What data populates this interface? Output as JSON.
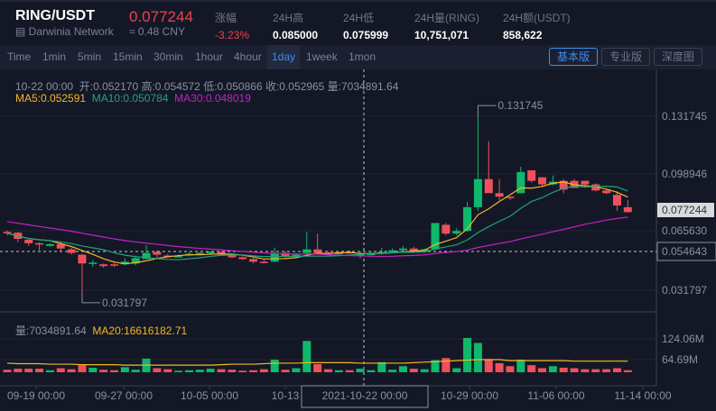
{
  "header": {
    "pair": "RING/USDT",
    "network": "Darwinia Network",
    "last_price": "0.077244",
    "cny_price": "≈ 0.48 CNY",
    "stats": [
      {
        "label": "涨幅",
        "value": "-3.23%",
        "color": "red"
      },
      {
        "label": "24H高",
        "value": "0.085000"
      },
      {
        "label": "24H低",
        "value": "0.075999"
      },
      {
        "label": "24H量(RING)",
        "value": "10,751,071"
      },
      {
        "label": "24H额(USDT)",
        "value": "858,622"
      }
    ]
  },
  "toolbar": {
    "intervals": [
      "Time",
      "1min",
      "5min",
      "15min",
      "30min",
      "1hour",
      "4hour",
      "1day",
      "1week",
      "1mon"
    ],
    "active_interval": "1day",
    "views": [
      "基本版",
      "专业版",
      "深度图"
    ],
    "active_view": "基本版"
  },
  "ohlc_info": {
    "date": "10-22 00:00",
    "open": "开:0.052170",
    "high": "高:0.054572",
    "low": "低:0.050866",
    "close": "收:0.052965",
    "volume": "量:7034891.64"
  },
  "ma_info": {
    "ma5": "MA5:0.052591",
    "ma10": "MA10:0.050784",
    "ma30": "MA30:0.048019"
  },
  "volume_info": {
    "volume": "量:7034891.64",
    "ma20": "MA20:16616182.71"
  },
  "colors": {
    "up": "#0fb86b",
    "down": "#f0505c",
    "ma5": "#f5b623",
    "ma10": "#1fa37a",
    "ma30": "#c71fc7",
    "accent": "#3d8bf2",
    "background": "#141826"
  },
  "chart_data": {
    "type": "candlestick",
    "title": "RING/USDT 1day",
    "price_axis_ticks": [
      "0.131745",
      "0.098946",
      "0.065630",
      "0.031797"
    ],
    "last_price_label": "0.077244",
    "crosshair_price_label": "0.054643",
    "crosshair_time_label": "2021-10-22 00:00",
    "max_marker": "0.131745",
    "min_marker": "0.031797",
    "volume_axis_ticks": [
      "124.06M",
      "64.69M"
    ],
    "x_tick_labels": [
      "09-19 00:00",
      "09-27 00:00",
      "10-05 00:00",
      "10-13 00:00",
      "10-29 00:00",
      "11-06 00:00",
      "11-14 00:00"
    ],
    "candles": [
      {
        "o": 0.066,
        "h": 0.0668,
        "l": 0.064,
        "c": 0.0652
      },
      {
        "o": 0.0655,
        "h": 0.066,
        "l": 0.06,
        "c": 0.062
      },
      {
        "o": 0.0615,
        "h": 0.0625,
        "l": 0.058,
        "c": 0.0595
      },
      {
        "o": 0.0595,
        "h": 0.06,
        "l": 0.0555,
        "c": 0.0592
      },
      {
        "o": 0.058,
        "h": 0.0595,
        "l": 0.0575,
        "c": 0.059
      },
      {
        "o": 0.059,
        "h": 0.06,
        "l": 0.055,
        "c": 0.0565
      },
      {
        "o": 0.056,
        "h": 0.057,
        "l": 0.053,
        "c": 0.054
      },
      {
        "o": 0.053,
        "h": 0.0532,
        "l": 0.0318,
        "c": 0.048
      },
      {
        "o": 0.048,
        "h": 0.05,
        "l": 0.046,
        "c": 0.0485
      },
      {
        "o": 0.0475,
        "h": 0.048,
        "l": 0.0455,
        "c": 0.0465
      },
      {
        "o": 0.0475,
        "h": 0.048,
        "l": 0.046,
        "c": 0.047
      },
      {
        "o": 0.0475,
        "h": 0.051,
        "l": 0.047,
        "c": 0.049
      },
      {
        "o": 0.048,
        "h": 0.0525,
        "l": 0.047,
        "c": 0.051
      },
      {
        "o": 0.0505,
        "h": 0.0585,
        "l": 0.0505,
        "c": 0.054
      },
      {
        "o": 0.0545,
        "h": 0.0555,
        "l": 0.051,
        "c": 0.053
      },
      {
        "o": 0.0525,
        "h": 0.0535,
        "l": 0.0515,
        "c": 0.052
      },
      {
        "o": 0.052,
        "h": 0.053,
        "l": 0.0515,
        "c": 0.0522
      },
      {
        "o": 0.0525,
        "h": 0.0545,
        "l": 0.052,
        "c": 0.0535
      },
      {
        "o": 0.0535,
        "h": 0.0545,
        "l": 0.0525,
        "c": 0.054
      },
      {
        "o": 0.054,
        "h": 0.055,
        "l": 0.053,
        "c": 0.0545
      },
      {
        "o": 0.0545,
        "h": 0.055,
        "l": 0.0525,
        "c": 0.053
      },
      {
        "o": 0.053,
        "h": 0.0535,
        "l": 0.051,
        "c": 0.0515
      },
      {
        "o": 0.0515,
        "h": 0.052,
        "l": 0.05,
        "c": 0.0505
      },
      {
        "o": 0.0505,
        "h": 0.051,
        "l": 0.048,
        "c": 0.049
      },
      {
        "o": 0.049,
        "h": 0.05,
        "l": 0.048,
        "c": 0.0485
      },
      {
        "o": 0.049,
        "h": 0.057,
        "l": 0.049,
        "c": 0.054
      },
      {
        "o": 0.054,
        "h": 0.055,
        "l": 0.051,
        "c": 0.052
      },
      {
        "o": 0.052,
        "h": 0.054,
        "l": 0.052,
        "c": 0.053
      },
      {
        "o": 0.054,
        "h": 0.066,
        "l": 0.0535,
        "c": 0.056
      },
      {
        "o": 0.056,
        "h": 0.065,
        "l": 0.054,
        "c": 0.054
      },
      {
        "o": 0.054,
        "h": 0.0548,
        "l": 0.053,
        "c": 0.0535
      },
      {
        "o": 0.0535,
        "h": 0.0545,
        "l": 0.053,
        "c": 0.054
      },
      {
        "o": 0.0545,
        "h": 0.0555,
        "l": 0.0535,
        "c": 0.054
      },
      {
        "o": 0.0522,
        "h": 0.0546,
        "l": 0.0509,
        "c": 0.053
      },
      {
        "o": 0.053,
        "h": 0.0545,
        "l": 0.0525,
        "c": 0.0535
      },
      {
        "o": 0.0535,
        "h": 0.057,
        "l": 0.053,
        "c": 0.0545
      },
      {
        "o": 0.0545,
        "h": 0.0565,
        "l": 0.054,
        "c": 0.0555
      },
      {
        "o": 0.0555,
        "h": 0.058,
        "l": 0.055,
        "c": 0.0565
      },
      {
        "o": 0.0565,
        "h": 0.0575,
        "l": 0.054,
        "c": 0.055
      },
      {
        "o": 0.0545,
        "h": 0.0565,
        "l": 0.054,
        "c": 0.056
      },
      {
        "o": 0.056,
        "h": 0.062,
        "l": 0.0555,
        "c": 0.071
      },
      {
        "o": 0.07,
        "h": 0.071,
        "l": 0.064,
        "c": 0.065
      },
      {
        "o": 0.065,
        "h": 0.068,
        "l": 0.064,
        "c": 0.0665
      },
      {
        "o": 0.0665,
        "h": 0.083,
        "l": 0.066,
        "c": 0.08
      },
      {
        "o": 0.08,
        "h": 0.1317,
        "l": 0.078,
        "c": 0.096
      },
      {
        "o": 0.096,
        "h": 0.1175,
        "l": 0.091,
        "c": 0.088
      },
      {
        "o": 0.088,
        "h": 0.096,
        "l": 0.084,
        "c": 0.086
      },
      {
        "o": 0.086,
        "h": 0.086,
        "l": 0.084,
        "c": 0.0852
      },
      {
        "o": 0.088,
        "h": 0.103,
        "l": 0.088,
        "c": 0.1
      },
      {
        "o": 0.101,
        "h": 0.101,
        "l": 0.094,
        "c": 0.095
      },
      {
        "o": 0.097,
        "h": 0.097,
        "l": 0.092,
        "c": 0.093
      },
      {
        "o": 0.093,
        "h": 0.098,
        "l": 0.0925,
        "c": 0.0945
      },
      {
        "o": 0.095,
        "h": 0.096,
        "l": 0.088,
        "c": 0.09
      },
      {
        "o": 0.095,
        "h": 0.096,
        "l": 0.093,
        "c": 0.091
      },
      {
        "o": 0.095,
        "h": 0.095,
        "l": 0.091,
        "c": 0.093
      },
      {
        "o": 0.093,
        "h": 0.0935,
        "l": 0.089,
        "c": 0.0895
      },
      {
        "o": 0.0895,
        "h": 0.09,
        "l": 0.0875,
        "c": 0.088
      },
      {
        "o": 0.087,
        "h": 0.089,
        "l": 0.078,
        "c": 0.081
      },
      {
        "o": 0.08,
        "h": 0.084,
        "l": 0.077,
        "c": 0.0772
      }
    ],
    "volumes_m": [
      5,
      7,
      7,
      7,
      4,
      8,
      6,
      14,
      9,
      5,
      4,
      10,
      5,
      27,
      8,
      6,
      3,
      4,
      5,
      7,
      6,
      5,
      3,
      4,
      6,
      25,
      5,
      8,
      62,
      16,
      6,
      4,
      4,
      7,
      4,
      20,
      5,
      12,
      7,
      6,
      24,
      28,
      8,
      68,
      58,
      26,
      18,
      12,
      25,
      14,
      8,
      12,
      9,
      8,
      6,
      6,
      6,
      8,
      4
    ],
    "ma20_m": [
      18,
      17,
      17,
      17,
      16,
      16,
      16,
      15,
      15,
      15,
      15,
      14,
      14,
      14,
      14,
      14,
      14,
      14,
      14,
      14,
      15,
      16,
      16,
      16,
      17,
      18,
      18,
      18,
      19,
      19,
      19,
      19,
      19,
      18,
      18,
      18,
      18,
      18,
      19,
      20,
      21,
      22,
      23,
      24,
      25,
      25,
      25,
      23,
      23,
      23,
      23,
      23,
      23,
      22,
      22,
      22,
      22,
      22,
      22
    ]
  }
}
